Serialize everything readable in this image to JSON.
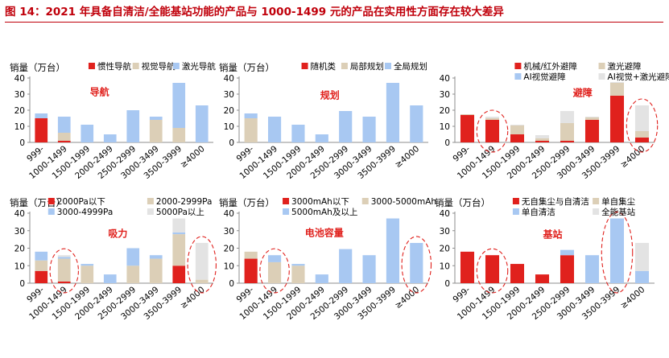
{
  "figure": {
    "title": "图 14：2021 年具备自清洁/全能基站功能的产品与 1000-1499 元的产品在实用性方面存在较大差异"
  },
  "colors": {
    "red": "#e0211d",
    "beige": "#dccfb7",
    "blue": "#a8c8f2",
    "gray": "#e3e3e3",
    "circle": "#e0211d",
    "label": "#e0211d",
    "axis": "#8c8c8c"
  },
  "chart_data": [
    {
      "type": "bar",
      "stacked": true,
      "title": "导航",
      "ylabel": "销量（万台）",
      "ylim": [
        0,
        40
      ],
      "yticks": [
        0,
        10,
        20,
        30,
        40
      ],
      "categories": [
        "999-",
        "1000-1499",
        "1500-1999",
        "2000-2499",
        "2500-2999",
        "3000-3499",
        "3500-3999",
        "≥4000"
      ],
      "series": [
        {
          "name": "惯性导航",
          "color": "red",
          "values": [
            15,
            1,
            0,
            0,
            0,
            0,
            0,
            0
          ]
        },
        {
          "name": "视觉导航",
          "color": "beige",
          "values": [
            0,
            5,
            0,
            0,
            0,
            14,
            9,
            0
          ]
        },
        {
          "name": "激光导航",
          "color": "blue",
          "values": [
            3,
            10,
            11,
            5,
            20,
            2,
            28,
            23
          ]
        }
      ],
      "highlight": []
    },
    {
      "type": "bar",
      "stacked": true,
      "title": "规划",
      "ylabel": "销量（万台）",
      "ylim": [
        0,
        40
      ],
      "yticks": [
        0,
        10,
        20,
        30,
        40
      ],
      "categories": [
        "999-",
        "1000-1499",
        "1500-1999",
        "2000-2499",
        "2500-2999",
        "3000-3499",
        "3500-3999",
        "≥4000"
      ],
      "series": [
        {
          "name": "随机类",
          "color": "red",
          "values": [
            0,
            0,
            0,
            0,
            0,
            0,
            0,
            0
          ]
        },
        {
          "name": "局部规划",
          "color": "beige",
          "values": [
            15,
            0,
            0,
            0,
            0,
            0,
            0,
            0
          ]
        },
        {
          "name": "全局规划",
          "color": "blue",
          "values": [
            3,
            16,
            11,
            5,
            19.5,
            16,
            37,
            23
          ]
        }
      ],
      "highlight": []
    },
    {
      "type": "bar",
      "stacked": true,
      "title": "避障",
      "ylabel": "",
      "ylim": [
        0,
        40
      ],
      "yticks": [
        0,
        10,
        20,
        30,
        40
      ],
      "categories": [
        "999-",
        "1000-1499",
        "1500-1999",
        "2000-2499",
        "2500-2999",
        "3000-3499",
        "3500-3999",
        "≥4000"
      ],
      "series": [
        {
          "name": "机械/红外避障",
          "color": "red",
          "values": [
            17,
            14,
            5,
            1,
            1,
            14,
            29,
            3
          ]
        },
        {
          "name": "激光避障",
          "color": "beige",
          "values": [
            0.5,
            1,
            5.5,
            1.5,
            11,
            1.5,
            8,
            4
          ]
        },
        {
          "name": "AI视觉避障",
          "color": "blue",
          "values": [
            0,
            0,
            0,
            0,
            0,
            0,
            0,
            0
          ]
        },
        {
          "name": "AI视觉+激光避障",
          "color": "gray",
          "values": [
            0,
            1,
            0.5,
            2,
            7.5,
            0.5,
            0.5,
            16
          ]
        }
      ],
      "highlight": [
        1,
        7
      ]
    },
    {
      "type": "bar",
      "stacked": true,
      "title": "吸力",
      "ylabel": "销量（万台）",
      "ylim": [
        0,
        40
      ],
      "yticks": [
        0,
        10,
        20,
        30,
        40
      ],
      "categories": [
        "999-",
        "1000-1499",
        "1500-1999",
        "2000-2499",
        "2500-2999",
        "3000-3499",
        "3500-3999",
        "≥4000"
      ],
      "series": [
        {
          "name": "2000Pa以下",
          "color": "red",
          "values": [
            7,
            1,
            0,
            0,
            0,
            0,
            10,
            0
          ]
        },
        {
          "name": "2000-2999Pa",
          "color": "beige",
          "values": [
            6,
            13,
            10,
            0,
            10,
            14,
            18,
            2
          ]
        },
        {
          "name": "3000-4999Pa",
          "color": "blue",
          "values": [
            5,
            1,
            1,
            5,
            10,
            2,
            1,
            0
          ]
        },
        {
          "name": "5000Pa以上",
          "color": "gray",
          "values": [
            0,
            1,
            0,
            0,
            0,
            0,
            8,
            21
          ]
        }
      ],
      "highlight": [
        1,
        7
      ]
    },
    {
      "type": "bar",
      "stacked": true,
      "title": "电池容量",
      "ylabel": "销量（万台）",
      "ylim": [
        0,
        40
      ],
      "yticks": [
        0,
        10,
        20,
        30,
        40
      ],
      "categories": [
        "999-",
        "1000-1499",
        "1500-1999",
        "2000-2499",
        "2500-2999",
        "3000-3499",
        "3500-3999",
        "≥4000"
      ],
      "series": [
        {
          "name": "3000mAh以下",
          "color": "red",
          "values": [
            14,
            0,
            0,
            0,
            0,
            0,
            0,
            0
          ]
        },
        {
          "name": "3000-5000mAh",
          "color": "beige",
          "values": [
            4,
            12,
            10,
            0,
            0,
            0,
            0,
            0
          ]
        },
        {
          "name": "5000mAh及以上",
          "color": "blue",
          "values": [
            0,
            4,
            1,
            5,
            19.5,
            16,
            37,
            23
          ]
        }
      ],
      "highlight": [
        1,
        7
      ]
    },
    {
      "type": "bar",
      "stacked": true,
      "title": "基站",
      "ylabel": "销量（万台）",
      "ylim": [
        0,
        40
      ],
      "yticks": [
        0,
        10,
        20,
        30,
        40
      ],
      "categories": [
        "999-",
        "1000-1499",
        "1500-1999",
        "2000-2499",
        "2500-2999",
        "3000-3499",
        "3500-3999",
        "≥4000"
      ],
      "series": [
        {
          "name": "无自集尘与自清洁",
          "color": "red",
          "values": [
            18,
            16,
            11,
            5,
            16,
            0,
            0,
            0
          ]
        },
        {
          "name": "单自集尘",
          "color": "beige",
          "values": [
            0,
            0,
            0,
            0,
            0,
            0,
            0,
            0
          ]
        },
        {
          "name": "单自清洁",
          "color": "blue",
          "values": [
            0,
            0,
            0,
            0,
            3,
            16,
            37,
            7
          ]
        },
        {
          "name": "全能基站",
          "color": "gray",
          "values": [
            0,
            0,
            0,
            0,
            0,
            0,
            0,
            16
          ]
        }
      ],
      "highlight": [
        1,
        6
      ]
    }
  ]
}
